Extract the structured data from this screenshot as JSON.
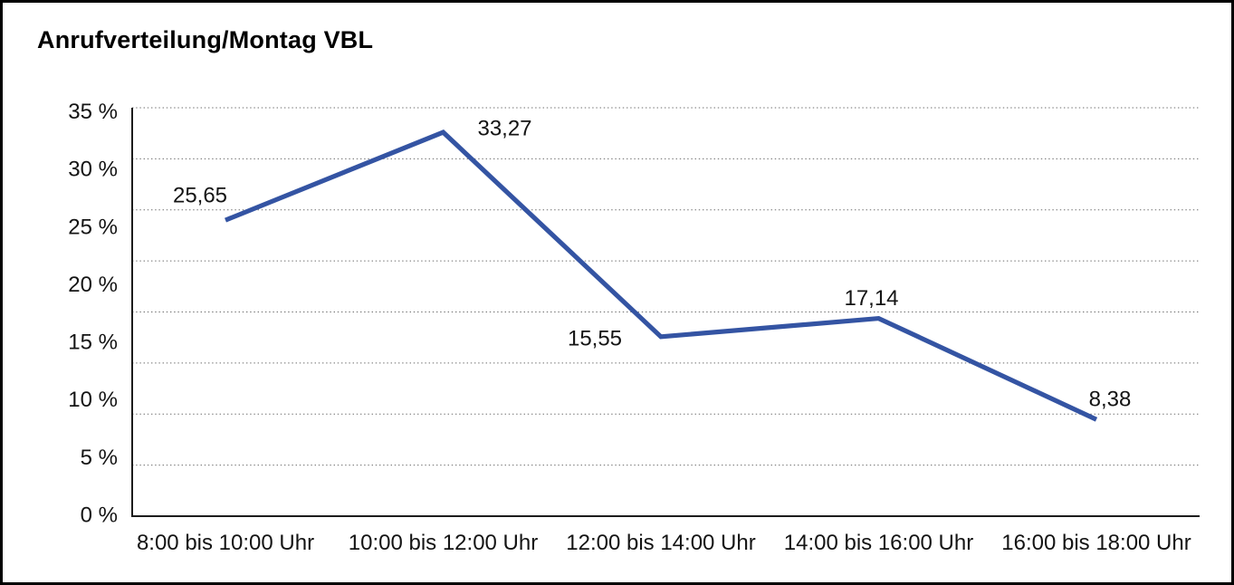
{
  "window": {
    "background": "#ffffff",
    "frame_color": "#000000"
  },
  "header": {
    "title": "Anrufverteilung/Montag VBL"
  },
  "chart_data": {
    "type": "line",
    "title": "Anrufverteilung/Montag VBL",
    "categories": [
      "8:00 bis 10:00 Uhr",
      "10:00 bis 12:00 Uhr",
      "12:00 bis 14:00 Uhr",
      "14:00 bis 16:00 Uhr",
      "16:00 bis 18:00 Uhr"
    ],
    "values": [
      25.65,
      33.27,
      15.55,
      17.14,
      8.38
    ],
    "value_labels": [
      "25,65",
      "33,27",
      "15,55",
      "17,14",
      "8,38"
    ],
    "y_tick_labels": [
      "35 %",
      "30 %",
      "25 %",
      "20 %",
      "15 %",
      "10 %",
      "5 %",
      "0 %"
    ],
    "ylim": [
      0,
      35
    ],
    "y_tick_step": 5,
    "xlabel": "",
    "ylabel": "",
    "legend": "none",
    "grid": "horizontal-dotted",
    "grid_dotted_line_count": 8,
    "line_color": "#3454A3",
    "axis_color": "#1c1c1c",
    "grid_color": "#6b6b6b",
    "text_color": "#141414"
  }
}
